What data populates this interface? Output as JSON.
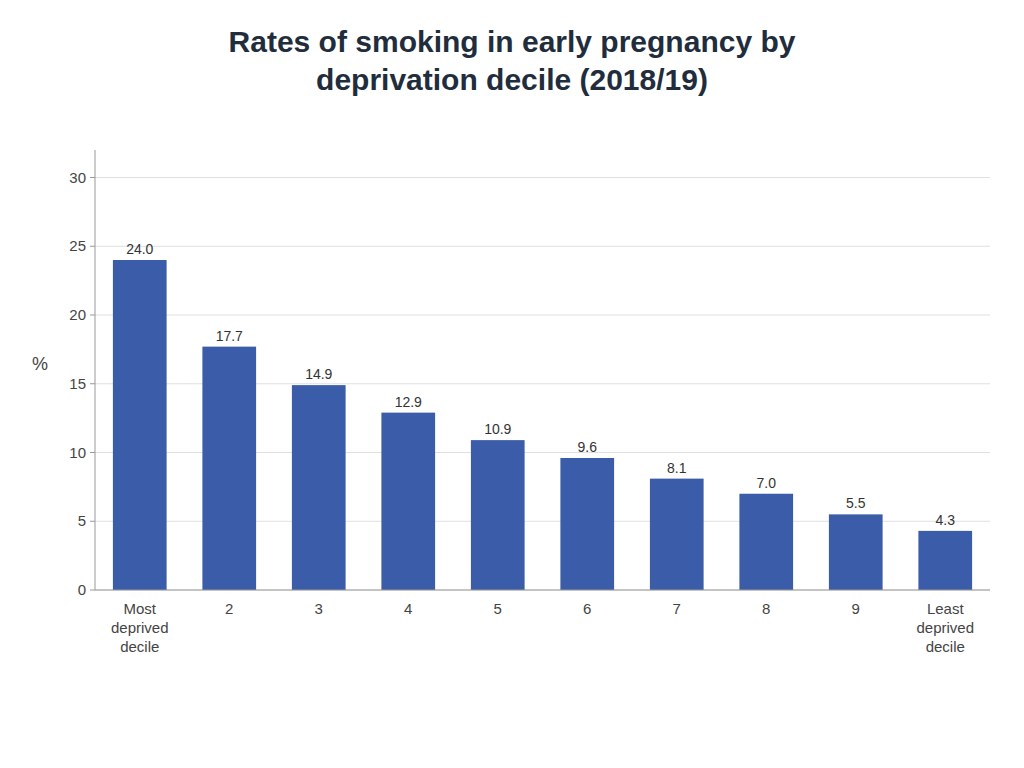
{
  "chart_data": {
    "type": "bar",
    "title": "Rates of smoking in early pregnancy by\ndeprivation decile (2018/19)",
    "ylabel": "%",
    "categories": [
      "Most\ndeprived\ndecile",
      "2",
      "3",
      "4",
      "5",
      "6",
      "7",
      "8",
      "9",
      "Least\ndeprived\ndecile"
    ],
    "values": [
      24.0,
      17.7,
      14.9,
      12.9,
      10.9,
      9.6,
      8.1,
      7.0,
      5.5,
      4.3
    ],
    "value_labels": [
      "24.0",
      "17.7",
      "14.9",
      "12.9",
      "10.9",
      "9.6",
      "8.1",
      "7.0",
      "5.5",
      "4.3"
    ],
    "color": "#3B5CA8",
    "ylim": [
      0,
      32
    ],
    "yticks": [
      0,
      5,
      10,
      15,
      20,
      25,
      30
    ],
    "grid": true,
    "data_labels": true
  }
}
